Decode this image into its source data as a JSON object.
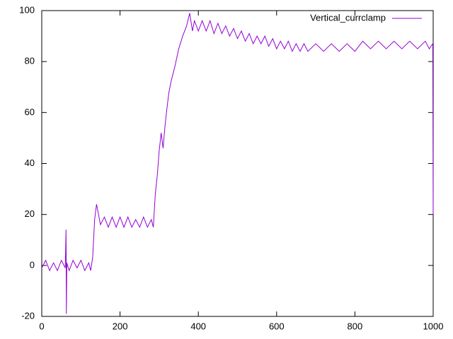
{
  "chart_data": {
    "type": "line",
    "x": [
      0,
      10,
      20,
      30,
      40,
      50,
      60,
      62,
      63,
      64,
      70,
      80,
      90,
      100,
      110,
      120,
      125,
      130,
      135,
      140,
      145,
      150,
      160,
      170,
      180,
      190,
      200,
      210,
      220,
      230,
      240,
      250,
      260,
      270,
      280,
      285,
      290,
      295,
      300,
      305,
      310,
      315,
      320,
      325,
      330,
      340,
      350,
      360,
      370,
      378,
      385,
      390,
      400,
      410,
      420,
      430,
      440,
      450,
      460,
      470,
      480,
      490,
      500,
      510,
      520,
      530,
      540,
      550,
      560,
      570,
      580,
      590,
      600,
      610,
      620,
      630,
      640,
      650,
      660,
      670,
      680,
      700,
      720,
      740,
      760,
      780,
      800,
      820,
      840,
      860,
      880,
      900,
      920,
      940,
      960,
      980,
      990,
      999,
      1000
    ],
    "series": [
      {
        "name": "Vertical_currclamp",
        "color": "#9400d3",
        "values": [
          -1,
          2,
          -2,
          1,
          -2,
          2,
          -1,
          14,
          -19,
          1,
          -2,
          2,
          -1,
          2,
          -2,
          1,
          -2,
          3,
          18,
          24,
          20,
          16,
          19,
          15,
          19,
          15,
          19,
          15,
          19,
          15,
          18,
          15,
          19,
          15,
          18,
          15,
          28,
          35,
          45,
          52,
          46,
          55,
          62,
          68,
          72,
          78,
          85,
          90,
          94,
          99,
          92,
          96,
          92,
          96,
          92,
          96,
          91,
          95,
          91,
          94,
          90,
          93,
          89,
          92,
          88,
          91,
          87,
          90,
          87,
          90,
          86,
          89,
          85,
          88,
          85,
          88,
          84,
          87,
          84,
          87,
          84,
          87,
          84,
          87,
          84,
          87,
          84,
          88,
          85,
          88,
          85,
          88,
          85,
          88,
          85,
          88,
          85,
          87,
          20
        ]
      }
    ],
    "xlim": [
      0,
      1000
    ],
    "xticks": [
      0,
      200,
      400,
      600,
      800,
      1000
    ],
    "ylim": [
      -20,
      100
    ],
    "yticks": [
      -20,
      0,
      20,
      40,
      60,
      80,
      100
    ],
    "legend": "top-right"
  }
}
